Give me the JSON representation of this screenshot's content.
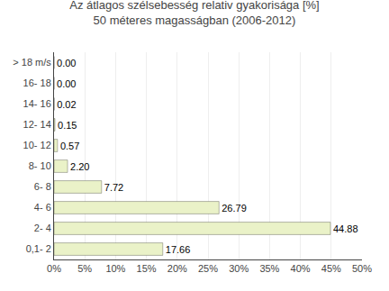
{
  "chart_data": {
    "type": "bar",
    "orientation": "horizontal",
    "title": "Az átlagos szélsebesség relativ gyakorisága [%]\n50 méteres magasságban (2006-2012)",
    "categories": [
      "> 18 m/s",
      "16- 18",
      "14- 16",
      "12- 14",
      "10- 12",
      "8- 10",
      "6- 8",
      "4- 6",
      "2- 4",
      "0,1- 2"
    ],
    "values": [
      0.0,
      0.0,
      0.02,
      0.15,
      0.57,
      2.2,
      7.72,
      26.79,
      44.88,
      17.66
    ],
    "value_labels": [
      "0.00",
      "0.00",
      "0.02",
      "0.15",
      "0.57",
      "2.20",
      "7.72",
      "26.79",
      "44.88",
      "17.66"
    ],
    "data_labels": true,
    "color": "#eaf2c8",
    "xlim": [
      0,
      50
    ],
    "xticks": [
      {
        "value": 0,
        "label": "0%"
      },
      {
        "value": 5,
        "label": "5%"
      },
      {
        "value": 10,
        "label": "10%"
      },
      {
        "value": 15,
        "label": "15%"
      },
      {
        "value": 20,
        "label": "20%"
      },
      {
        "value": 25,
        "label": "25%"
      },
      {
        "value": 30,
        "label": "30%"
      },
      {
        "value": 35,
        "label": "35%"
      },
      {
        "value": 40,
        "label": "40%"
      },
      {
        "value": 45,
        "label": "45%"
      },
      {
        "value": 50,
        "label": "50%"
      }
    ],
    "grid": true
  }
}
